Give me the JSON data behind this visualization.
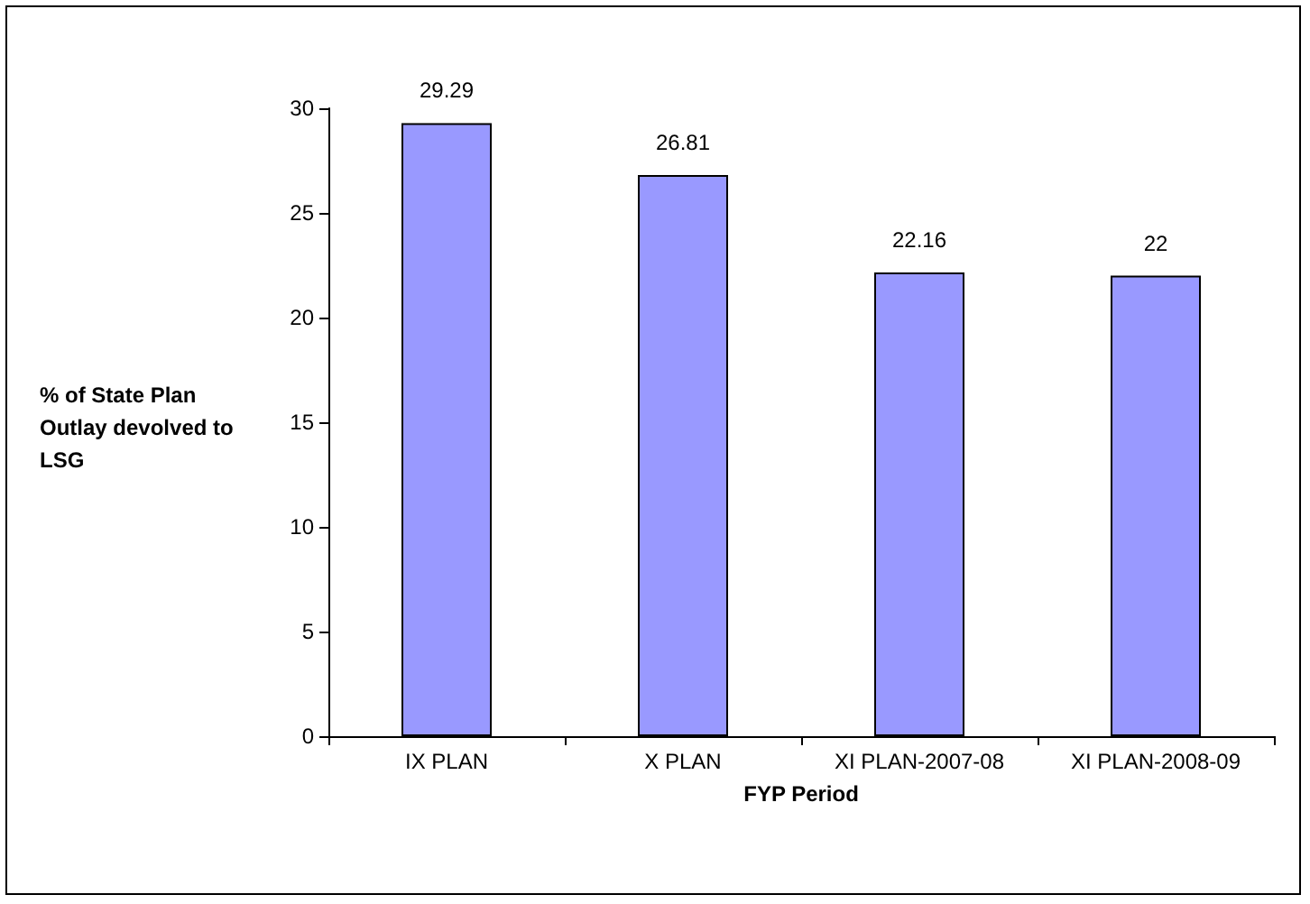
{
  "chart_data": {
    "type": "bar",
    "categories": [
      "IX PLAN",
      "X PLAN",
      "XI PLAN-2007-08",
      "XI PLAN-2008-09"
    ],
    "values": [
      29.29,
      26.81,
      22.16,
      22
    ],
    "color": "#9999ff",
    "xlabel": "FYP Period",
    "ylabel": "% of State Plan Outlay devolved to LSG",
    "ylim": [
      0,
      30
    ],
    "yticks": [
      0,
      5,
      10,
      15,
      20,
      25,
      30
    ],
    "data_labels": true
  }
}
